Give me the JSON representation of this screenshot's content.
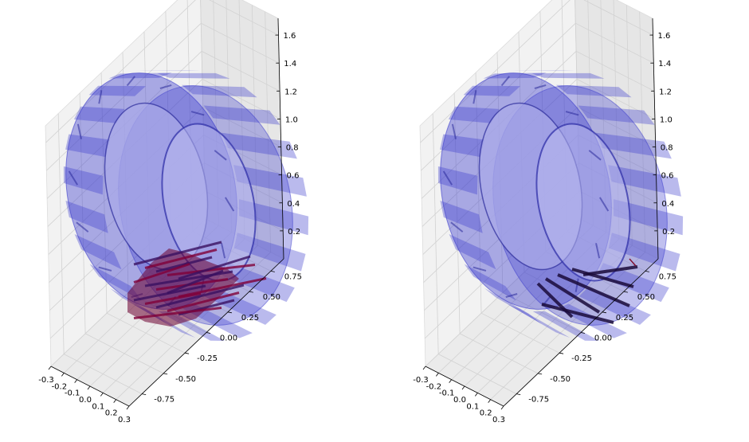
{
  "chart_data": [
    {
      "type": "surface3d",
      "title": "",
      "xlabel": "",
      "ylabel": "",
      "zlabel": "",
      "x_ticks": [
        "-0.3",
        "-0.2",
        "-0.1",
        "0.0",
        "0.1",
        "0.2",
        "0.3"
      ],
      "y_ticks": [
        "-0.75",
        "-0.50",
        "-0.25",
        "0.00",
        "0.25",
        "0.50",
        "0.75"
      ],
      "z_ticks": [
        "0.2",
        "0.4",
        "0.6",
        "0.8",
        "1.0",
        "1.2",
        "1.4",
        "1.6"
      ],
      "xlim": [
        -0.3,
        0.3
      ],
      "ylim": [
        -0.9,
        0.9
      ],
      "zlim": [
        0,
        1.72
      ],
      "grid": true,
      "tire_color": "#3a3acc",
      "contact_color": "#6b0030",
      "contact_patch": "dense"
    },
    {
      "type": "surface3d",
      "title": "",
      "xlabel": "",
      "ylabel": "",
      "zlabel": "",
      "x_ticks": [
        "-0.3",
        "-0.2",
        "-0.1",
        "0.0",
        "0.1",
        "0.2",
        "0.3"
      ],
      "y_ticks": [
        "-0.75",
        "-0.50",
        "-0.25",
        "0.00",
        "0.25",
        "0.50",
        "0.75"
      ],
      "z_ticks": [
        "0.2",
        "0.4",
        "0.6",
        "0.8",
        "1.0",
        "1.2",
        "1.4",
        "1.6"
      ],
      "xlim": [
        -0.3,
        0.3
      ],
      "ylim": [
        -0.9,
        0.9
      ],
      "zlim": [
        0,
        1.72
      ],
      "grid": true,
      "tire_color": "#3a3acc",
      "contact_color": "#1a0a3a",
      "contact_patch": "sparse"
    }
  ]
}
